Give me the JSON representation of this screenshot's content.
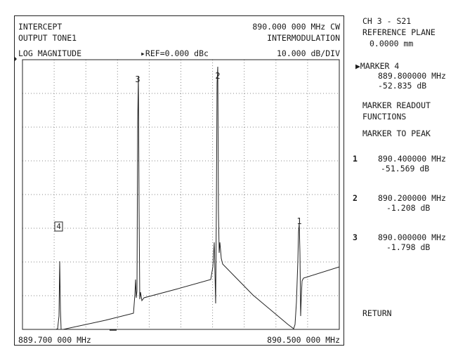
{
  "header": {
    "line1_left": "INTERCEPT",
    "line1_right": "890.000 000 MHz CW",
    "line2_left": "OUTPUT TONE1",
    "line2_right": "INTERMODULATION",
    "line3_left": "LOG MAGNITUDE",
    "ref": "▸REF=0.000 dBc",
    "scale": "10.000 dB/DIV"
  },
  "footer": {
    "start_freq": "889.700 000 MHz",
    "stop_freq": "890.500 000 MHz"
  },
  "markers": {
    "m1": "1",
    "m2": "2",
    "m3": "3",
    "m4": "4"
  },
  "softkeys": {
    "channel": "CH 3 - S21",
    "ref_plane_label": "REFERENCE PLANE",
    "ref_plane_value": "0.0000 mm",
    "marker4_label": "▶MARKER 4",
    "marker4_freq": "889.800000 MHz",
    "marker4_value": "-52.835 dB",
    "readout_line1": "MARKER READOUT",
    "readout_line2": "FUNCTIONS",
    "marker_to_peak": "MARKER TO PEAK",
    "readouts": [
      {
        "num": "1",
        "freq": "890.400000 MHz",
        "value": "-51.569 dB"
      },
      {
        "num": "2",
        "freq": "890.200000 MHz",
        "value": "-1.208 dB"
      },
      {
        "num": "3",
        "freq": "890.000000 MHz",
        "value": "-1.798 dB"
      }
    ],
    "return": "RETURN"
  }
}
